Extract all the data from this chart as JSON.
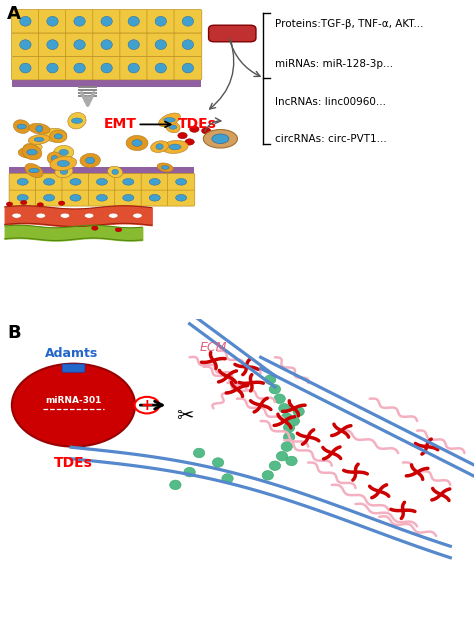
{
  "panel_A_label": "A",
  "panel_B_label": "B",
  "panel_A_texts": {
    "EMT": "EMT",
    "TDEs": "TDEs",
    "proteins": "Proteins:TGF-β, TNF-α, AKT...",
    "miRNAs": "miRNAs: miR-128-3p...",
    "lncRNAs": "lncRNAs: linc00960...",
    "circRNAs": "circRNAs: circ-PVT1..."
  },
  "panel_B_texts": {
    "Adamts": "Adamts",
    "miRNA": "miRNA-301",
    "TDEs": "TDEs",
    "ECM": "ECM",
    "plus": "+"
  },
  "colors": {
    "red": "#CC0000",
    "pink": "#F4A0B0",
    "light_pink": "#F8C0CC",
    "blue_vessel": "#5588CC",
    "green_teal": "#55BB88",
    "yellow_cell": "#F0C840",
    "blue_nucleus": "#40A0D0",
    "orange_cell": "#E8A030",
    "purple_mem": "#9060A0",
    "vessel_red": "#E05030",
    "vessel_green": "#88BB30",
    "tan_cell": "#D4A060",
    "background": "#FFFFFF",
    "dark_red": "#990000",
    "blue_adamts": "#2266CC"
  }
}
